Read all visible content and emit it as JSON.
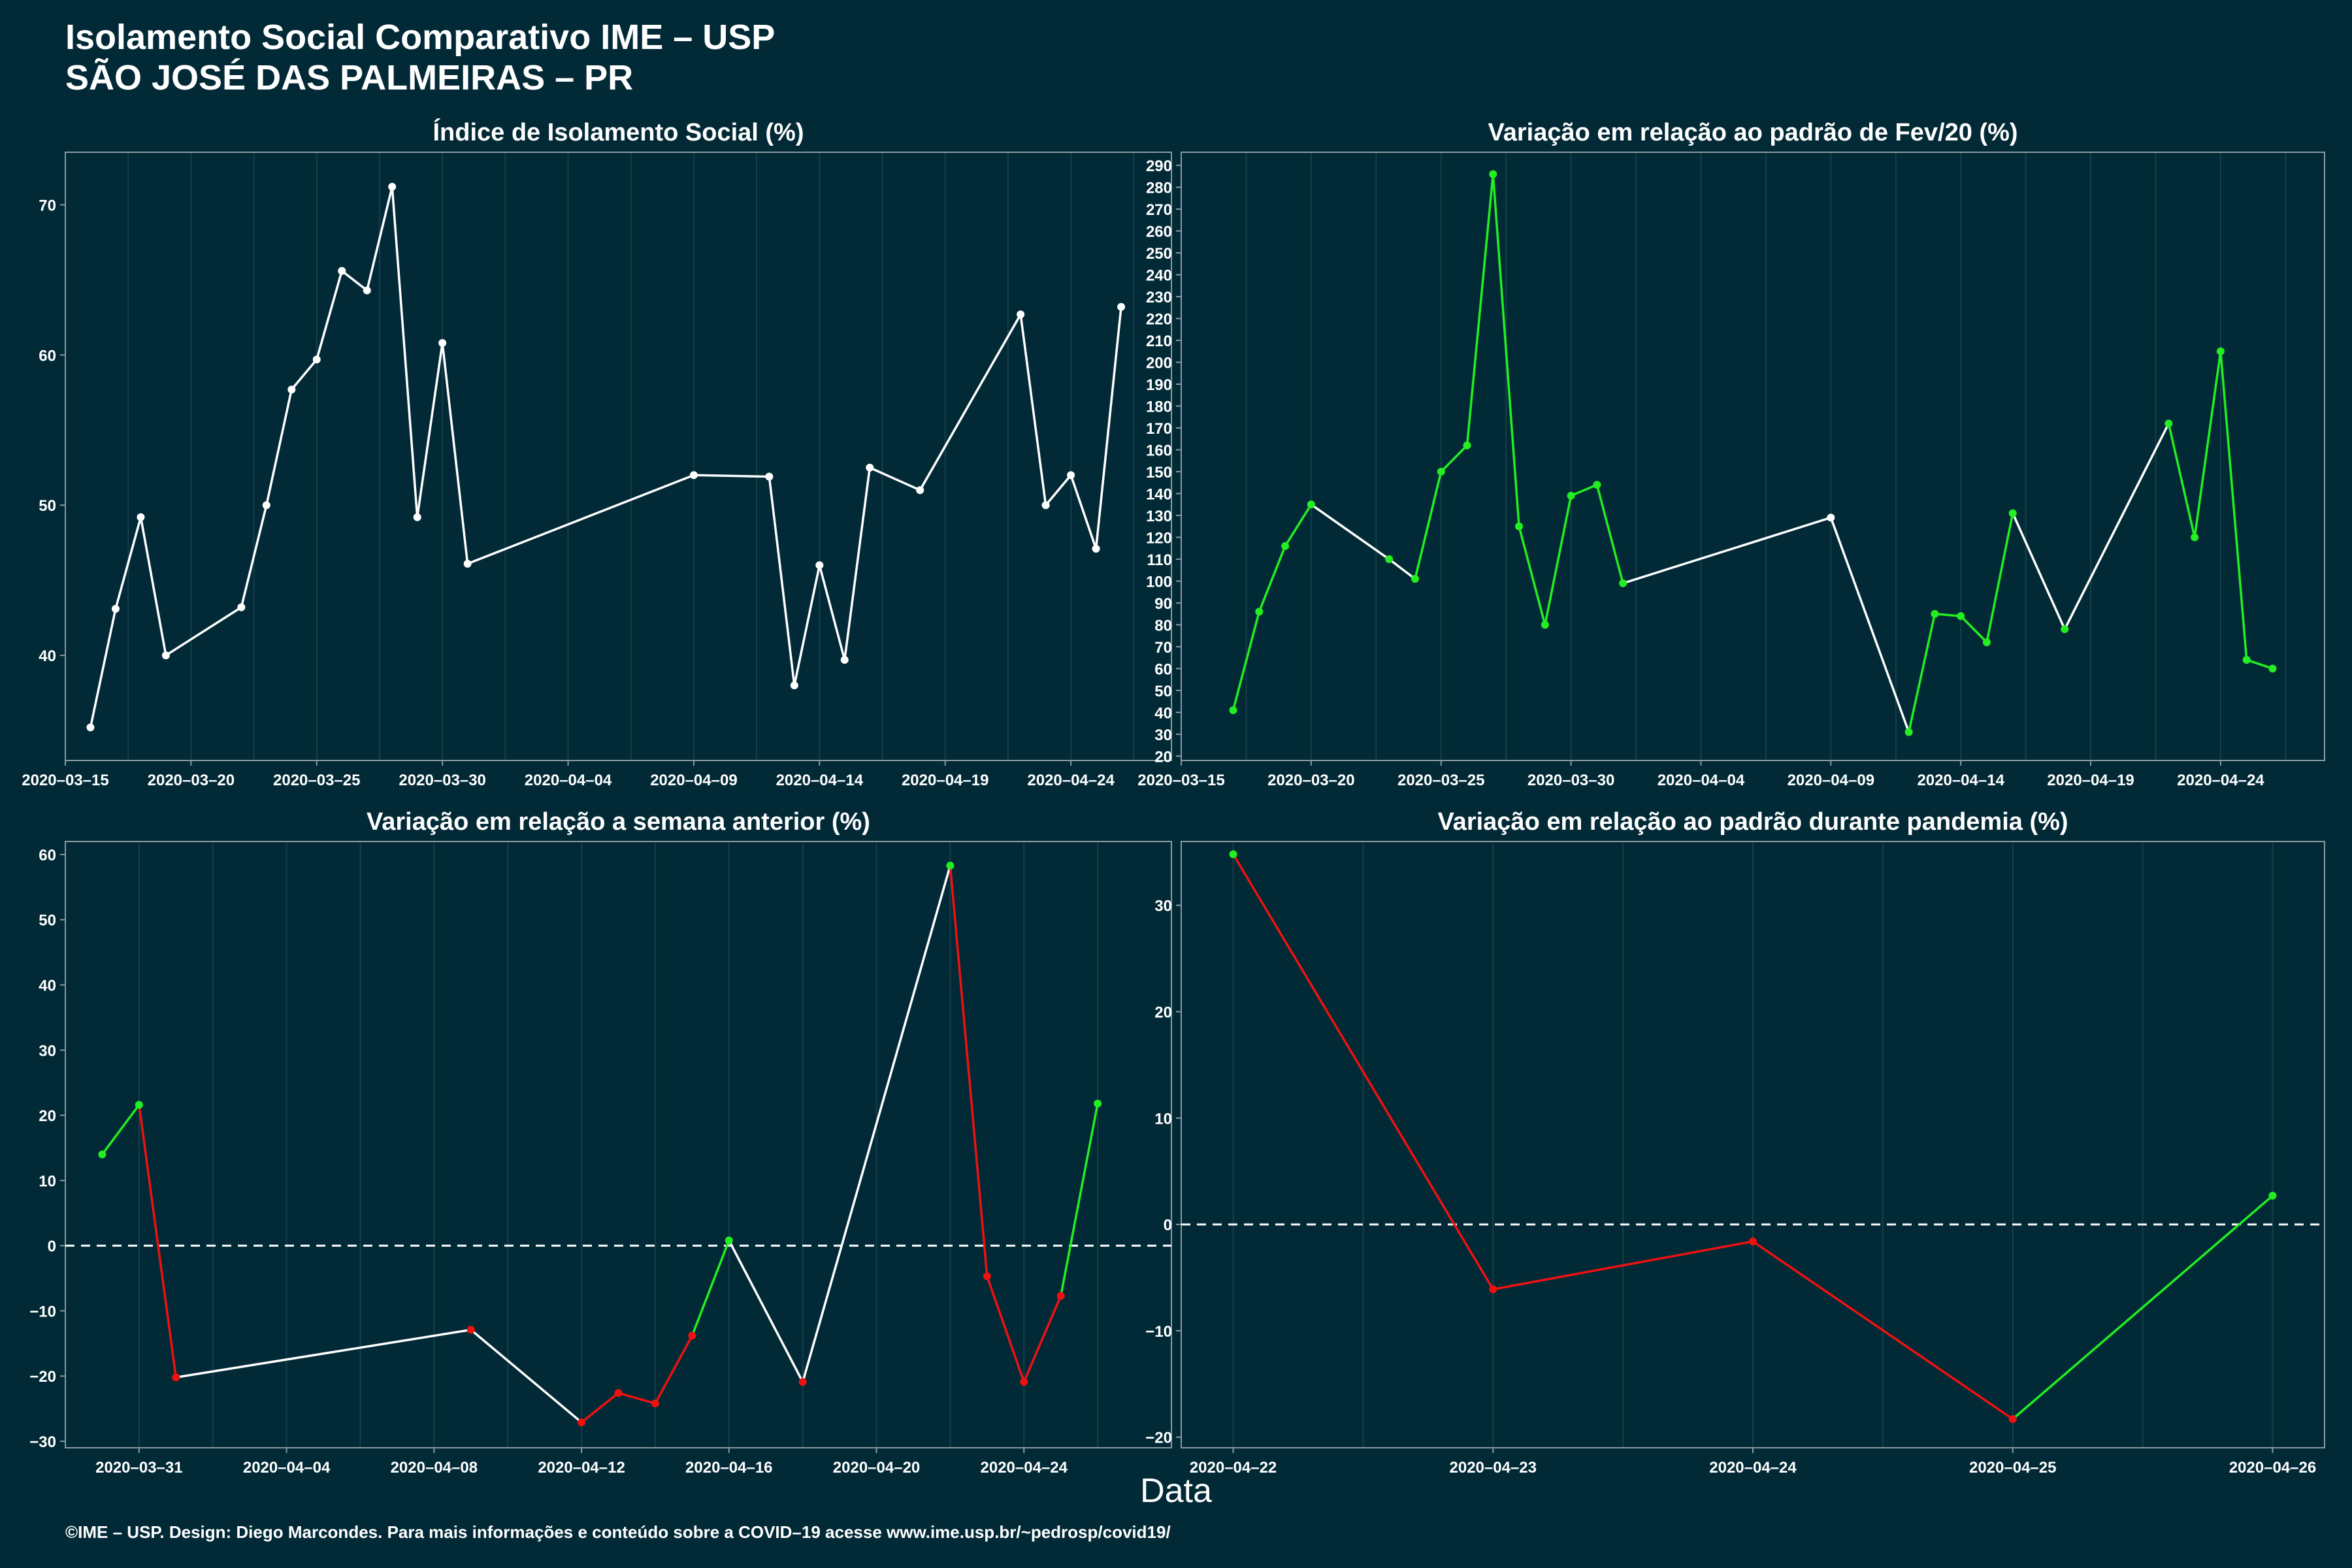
{
  "header": {
    "title_line1": "Isolamento Social Comparativo IME – USP",
    "title_line2": "SÃO JOSÉ DAS PALMEIRAS – PR"
  },
  "x_axis_label": "Data",
  "footer": "©IME – USP. Design: Diego Marcondes. Para mais informações e conteúdo sobre a COVID–19 acesse www.ime.usp.br/~pedrosp/covid19/",
  "colors": {
    "background": "#022a36",
    "line": "#ffffff",
    "up": "#22ee22",
    "down": "#ee1111",
    "panel_border": "#8a9aa0",
    "grid": "#153f4a"
  },
  "chart_data": [
    {
      "type": "line",
      "title": "Índice de Isolamento Social (%)",
      "xlim": [
        "2020-03-15",
        "2020-04-28"
      ],
      "ylim": [
        33,
        73.5
      ],
      "yticks": [
        40,
        50,
        60,
        70
      ],
      "xticks": [
        "2020-03-15",
        "2020-03-20",
        "2020-03-25",
        "2020-03-30",
        "2020-04-04",
        "2020-04-09",
        "2020-04-14",
        "2020-04-19",
        "2020-04-24"
      ],
      "x": [
        "2020-03-16",
        "2020-03-17",
        "2020-03-18",
        "2020-03-19",
        "2020-03-22",
        "2020-03-23",
        "2020-03-24",
        "2020-03-25",
        "2020-03-26",
        "2020-03-27",
        "2020-03-28",
        "2020-03-29",
        "2020-03-30",
        "2020-03-31",
        "2020-04-01",
        "2020-04-09",
        "2020-04-12",
        "2020-04-13",
        "2020-04-14",
        "2020-04-15",
        "2020-04-16",
        "2020-04-18",
        "2020-04-22",
        "2020-04-23",
        "2020-04-24",
        "2020-04-25",
        "2020-04-26"
      ],
      "values": [
        35.2,
        43.1,
        49.2,
        40.0,
        43.2,
        50.0,
        57.7,
        59.7,
        65.6,
        64.3,
        71.2,
        49.2,
        60.8,
        46.1,
        null,
        52.0,
        51.9,
        38.0,
        46.0,
        39.7,
        52.5,
        51.0,
        62.7,
        50.0,
        52.0,
        47.1,
        63.2
      ],
      "colors": []
    },
    {
      "type": "line",
      "title": "Variação em relação ao padrão de Fev/20 (%)",
      "xlim": [
        "2020-03-15",
        "2020-04-28"
      ],
      "ylim": [
        18,
        296
      ],
      "yticks": [
        20,
        30,
        40,
        50,
        60,
        70,
        80,
        90,
        100,
        110,
        120,
        130,
        140,
        150,
        160,
        170,
        180,
        190,
        200,
        210,
        220,
        230,
        240,
        250,
        260,
        270,
        280,
        290
      ],
      "xticks": [
        "2020-03-15",
        "2020-03-20",
        "2020-03-25",
        "2020-03-30",
        "2020-04-04",
        "2020-04-09",
        "2020-04-14",
        "2020-04-19",
        "2020-04-24"
      ],
      "x": [
        "2020-03-17",
        "2020-03-18",
        "2020-03-19",
        "2020-03-20",
        "2020-03-23",
        "2020-03-24",
        "2020-03-25",
        "2020-03-26",
        "2020-03-27",
        "2020-03-28",
        "2020-03-29",
        "2020-03-30",
        "2020-03-31",
        "2020-04-01",
        "2020-04-09",
        "2020-04-12",
        "2020-04-13",
        "2020-04-14",
        "2020-04-15",
        "2020-04-16",
        "2020-04-18",
        "2020-04-22",
        "2020-04-23",
        "2020-04-24",
        "2020-04-25",
        "2020-04-26"
      ],
      "values": [
        41,
        86,
        116,
        135,
        110,
        101,
        150,
        162,
        286,
        125,
        80,
        139,
        144,
        99,
        129,
        31,
        85,
        84,
        72,
        131,
        78,
        172,
        120,
        205,
        64,
        60
      ],
      "colors": [
        "#22ee22",
        "#22ee22",
        "#22ee22",
        "#ffffff",
        "#ffffff",
        "#22ee22",
        "#22ee22",
        "#22ee22",
        "#22ee22",
        "#22ee22",
        "#22ee22",
        "#22ee22",
        "#22ee22",
        "#ffffff",
        "#ffffff",
        "#22ee22",
        "#22ee22",
        "#22ee22",
        "#22ee22",
        "#ffffff",
        "#ffffff",
        "#22ee22",
        "#22ee22",
        "#22ee22",
        "#22ee22"
      ],
      "point_colors": [
        "#22ee22",
        "#22ee22",
        "#22ee22",
        "#22ee22",
        "#22ee22",
        "#22ee22",
        "#22ee22",
        "#22ee22",
        "#22ee22",
        "#22ee22",
        "#22ee22",
        "#22ee22",
        "#22ee22",
        "#22ee22",
        "#ffffff",
        "#22ee22",
        "#22ee22",
        "#22ee22",
        "#22ee22",
        "#22ee22",
        "#22ee22",
        "#22ee22",
        "#22ee22",
        "#22ee22",
        "#22ee22",
        "#22ee22"
      ]
    },
    {
      "type": "line",
      "title": "Variação em relação a semana anterior (%)",
      "xlim": [
        "2020-03-29",
        "2020-04-28"
      ],
      "ylim": [
        -31,
        62
      ],
      "yticks": [
        -30,
        -20,
        -10,
        0,
        10,
        20,
        30,
        40,
        50,
        60
      ],
      "xticks": [
        "2020-03-31",
        "2020-04-04",
        "2020-04-08",
        "2020-04-12",
        "2020-04-16",
        "2020-04-20",
        "2020-04-24"
      ],
      "reference_line": 0,
      "x": [
        "2020-03-30",
        "2020-03-31",
        "2020-04-01",
        "2020-04-09",
        "2020-04-12",
        "2020-04-13",
        "2020-04-14",
        "2020-04-15",
        "2020-04-16",
        "2020-04-18",
        "2020-04-22",
        "2020-04-23",
        "2020-04-24",
        "2020-04-25",
        "2020-04-26"
      ],
      "values": [
        14.0,
        21.6,
        -20.2,
        -12.9,
        -27.1,
        -22.6,
        -24.2,
        -13.8,
        0.8,
        -20.9,
        58.3,
        -4.7,
        -20.9,
        -7.7,
        21.8
      ],
      "colors": [
        "#22ee22",
        "#ee1111",
        "#ffffff",
        "#ffffff",
        "#ee1111",
        "#ee1111",
        "#ee1111",
        "#22ee22",
        "#ffffff",
        "#ffffff",
        "#ee1111",
        "#ee1111",
        "#ee1111",
        "#22ee22"
      ],
      "point_colors": [
        "#22ee22",
        "#22ee22",
        "#ee1111",
        "#ee1111",
        "#ee1111",
        "#ee1111",
        "#ee1111",
        "#ee1111",
        "#22ee22",
        "#ee1111",
        "#22ee22",
        "#ee1111",
        "#ee1111",
        "#ee1111",
        "#22ee22"
      ]
    },
    {
      "type": "line",
      "title": "Variação em relação ao padrão durante pandemia (%)",
      "xlim": [
        "2020-04-21.8",
        "2020-04-26.2"
      ],
      "ylim": [
        -21,
        36
      ],
      "yticks": [
        -20,
        -10,
        0,
        10,
        20,
        30
      ],
      "xticks": [
        "2020-04-22",
        "2020-04-23",
        "2020-04-24",
        "2020-04-25",
        "2020-04-26"
      ],
      "reference_line": 0,
      "x": [
        "2020-04-22",
        "2020-04-23",
        "2020-04-24",
        "2020-04-25",
        "2020-04-26"
      ],
      "values": [
        34.8,
        -6.1,
        -1.6,
        -18.3,
        2.7
      ],
      "colors": [
        "#ee1111",
        "#ee1111",
        "#ee1111",
        "#22ee22"
      ],
      "point_colors": [
        "#22ee22",
        "#ee1111",
        "#ee1111",
        "#ee1111",
        "#22ee22"
      ]
    }
  ]
}
